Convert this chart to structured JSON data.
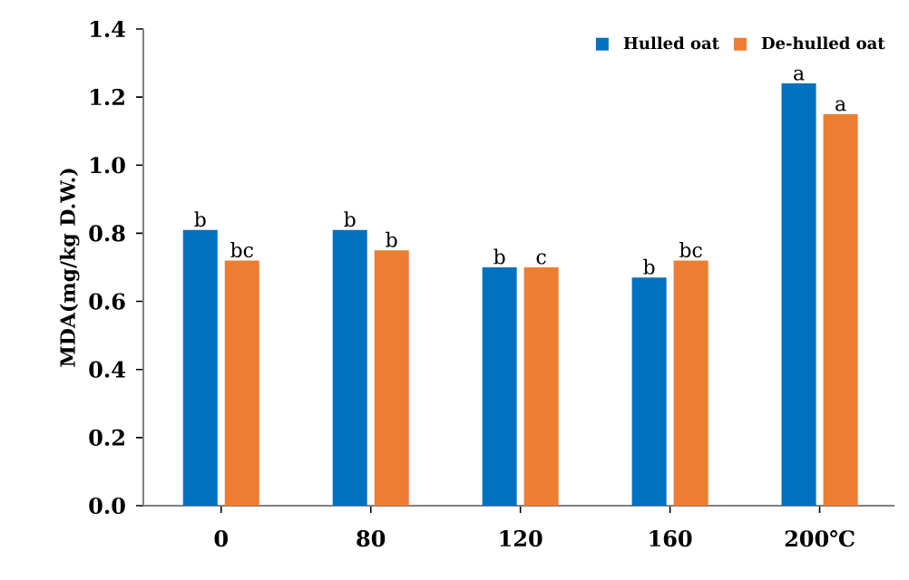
{
  "chart_data": {
    "type": "bar",
    "ylabel": "MDA(mg/kg D.W.)",
    "categories": [
      "0",
      "80",
      "120",
      "160",
      "200℃"
    ],
    "series": [
      {
        "name": "Hulled oat",
        "color": "#0070c0",
        "values": [
          0.81,
          0.81,
          0.7,
          0.67,
          1.24
        ],
        "value_labels": [
          "b",
          "b",
          "b",
          "b",
          "a"
        ]
      },
      {
        "name": "De-hulled oat",
        "color": "#ed7d31",
        "values": [
          0.72,
          0.75,
          0.7,
          0.72,
          1.15
        ],
        "value_labels": [
          "bc",
          "b",
          "c",
          "bc",
          "a"
        ]
      }
    ],
    "ylim": [
      0,
      1.4
    ],
    "yticks": [
      {
        "value": 0,
        "label": "0.0"
      },
      0.2,
      0.4,
      0.6,
      0.8,
      {
        "value": 1,
        "label": "1.0"
      },
      1.2,
      1.4
    ],
    "legend": "top right",
    "grid": false
  }
}
